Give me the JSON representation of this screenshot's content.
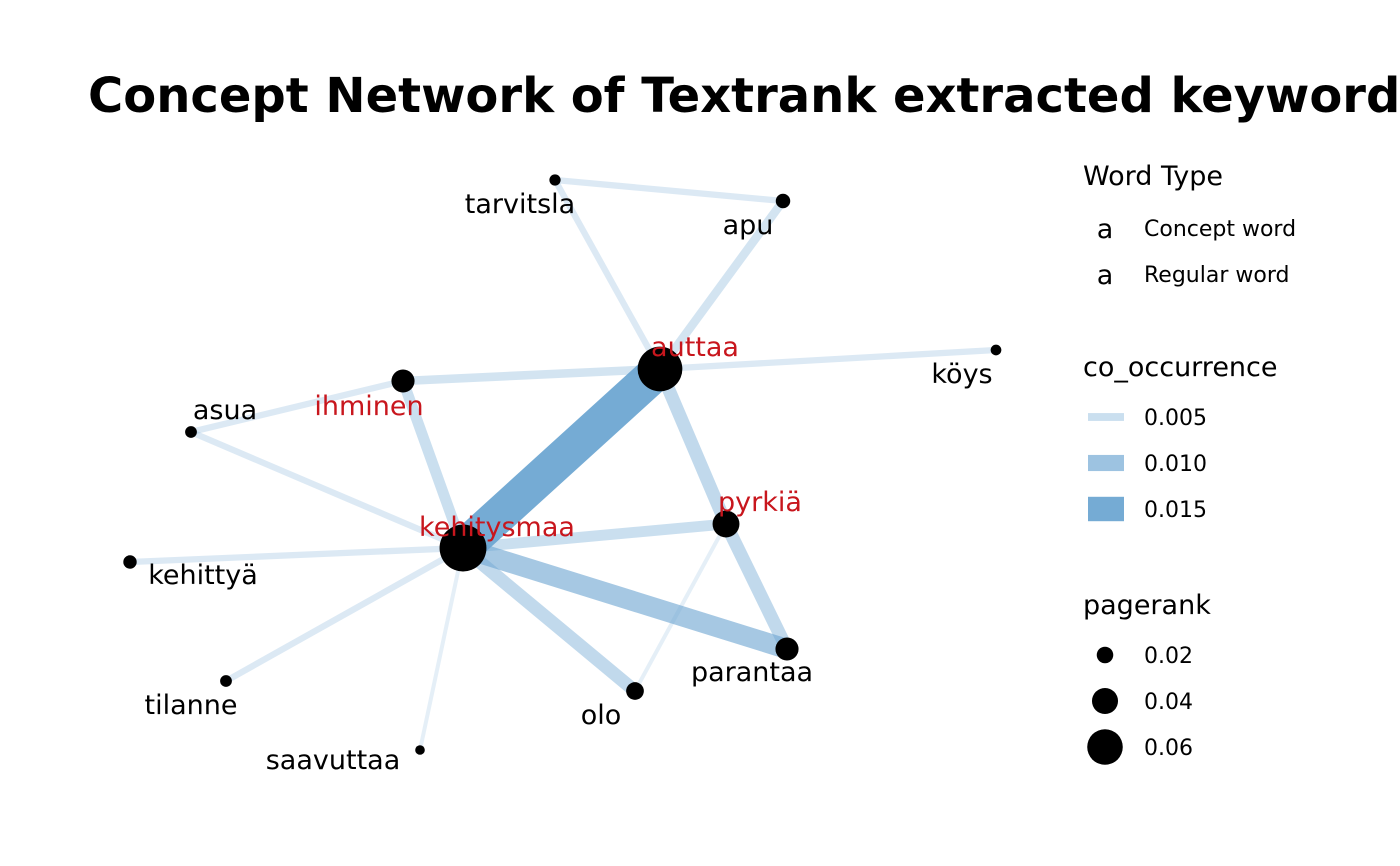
{
  "title": "Concept Network of Textrank extracted keywords",
  "colors": {
    "concept": "#c8161d",
    "regular": "#000000",
    "edge": "#6ea6d2"
  },
  "nodes": [
    {
      "id": "tarvitsla",
      "type": "regular",
      "pagerank": 0.006
    },
    {
      "id": "apu",
      "type": "regular",
      "pagerank": 0.012
    },
    {
      "id": "auttaa",
      "type": "concept",
      "pagerank": 0.068
    },
    {
      "id": "köys",
      "type": "regular",
      "pagerank": 0.005
    },
    {
      "id": "ihminen",
      "type": "concept",
      "pagerank": 0.028
    },
    {
      "id": "asua",
      "type": "regular",
      "pagerank": 0.007
    },
    {
      "id": "pyrkiä",
      "type": "concept",
      "pagerank": 0.035
    },
    {
      "id": "kehitysmaa",
      "type": "concept",
      "pagerank": 0.072
    },
    {
      "id": "kehittyä",
      "type": "regular",
      "pagerank": 0.01
    },
    {
      "id": "parantaa",
      "type": "regular",
      "pagerank": 0.028
    },
    {
      "id": "tilanne",
      "type": "regular",
      "pagerank": 0.007
    },
    {
      "id": "olo",
      "type": "regular",
      "pagerank": 0.018
    },
    {
      "id": "saavuttaa",
      "type": "regular",
      "pagerank": 0.003
    }
  ],
  "edges": [
    {
      "source": "kehitysmaa",
      "target": "auttaa",
      "co_occurrence": 0.016
    },
    {
      "source": "auttaa",
      "target": "pyrkiä",
      "co_occurrence": 0.006
    },
    {
      "source": "pyrkiä",
      "target": "parantaa",
      "co_occurrence": 0.006
    },
    {
      "source": "kehitysmaa",
      "target": "parantaa",
      "co_occurrence": 0.009
    },
    {
      "source": "kehitysmaa",
      "target": "pyrkiä",
      "co_occurrence": 0.005
    },
    {
      "source": "kehitysmaa",
      "target": "olo",
      "co_occurrence": 0.006
    },
    {
      "source": "kehitysmaa",
      "target": "ihminen",
      "co_occurrence": 0.005
    },
    {
      "source": "auttaa",
      "target": "apu",
      "co_occurrence": 0.004
    },
    {
      "source": "auttaa",
      "target": "ihminen",
      "co_occurrence": 0.004
    },
    {
      "source": "auttaa",
      "target": "köys",
      "co_occurrence": 0.003
    },
    {
      "source": "auttaa",
      "target": "tarvitsla",
      "co_occurrence": 0.003
    },
    {
      "source": "tarvitsla",
      "target": "apu",
      "co_occurrence": 0.003
    },
    {
      "source": "ihminen",
      "target": "asua",
      "co_occurrence": 0.003
    },
    {
      "source": "asua",
      "target": "kehitysmaa",
      "co_occurrence": 0.003
    },
    {
      "source": "kehitysmaa",
      "target": "kehittyä",
      "co_occurrence": 0.003
    },
    {
      "source": "kehitysmaa",
      "target": "tilanne",
      "co_occurrence": 0.003
    },
    {
      "source": "kehitysmaa",
      "target": "saavuttaa",
      "co_occurrence": 0.002
    },
    {
      "source": "pyrkiä",
      "target": "olo",
      "co_occurrence": 0.002
    }
  ],
  "legend": {
    "word_type": {
      "title": "Word Type",
      "items": [
        {
          "key": "a",
          "label": "Concept word",
          "type": "concept"
        },
        {
          "key": "a",
          "label": "Regular word",
          "type": "regular"
        }
      ]
    },
    "co_occurrence": {
      "title": "co_occurrence",
      "items": [
        {
          "label": "0.005",
          "value": 0.005
        },
        {
          "label": "0.010",
          "value": 0.01
        },
        {
          "label": "0.015",
          "value": 0.015
        }
      ]
    },
    "pagerank": {
      "title": "pagerank",
      "items": [
        {
          "label": "0.02",
          "value": 0.02
        },
        {
          "label": "0.04",
          "value": 0.04
        },
        {
          "label": "0.06",
          "value": 0.06
        }
      ]
    }
  }
}
